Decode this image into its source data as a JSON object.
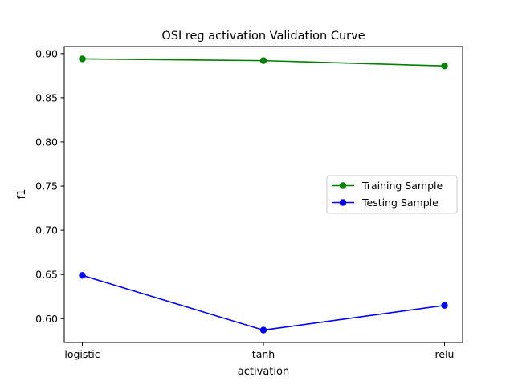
{
  "chart_data": {
    "type": "line",
    "title": "OSI reg activation Validation Curve",
    "xlabel": "activation",
    "ylabel": "f1",
    "categories": [
      "logistic",
      "tanh",
      "relu"
    ],
    "ylim": [
      0.573,
      0.908
    ],
    "yticks": [
      0.6,
      0.65,
      0.7,
      0.75,
      0.8,
      0.85,
      0.9
    ],
    "ytick_labels": [
      "0.60",
      "0.65",
      "0.70",
      "0.75",
      "0.80",
      "0.85",
      "0.90"
    ],
    "grid": false,
    "legend_position": "center-right",
    "series": [
      {
        "name": "Training Sample",
        "color": "#008000",
        "values": [
          0.894,
          0.892,
          0.886
        ]
      },
      {
        "name": "Testing Sample",
        "color": "#0000ff",
        "values": [
          0.649,
          0.587,
          0.615
        ]
      }
    ]
  }
}
